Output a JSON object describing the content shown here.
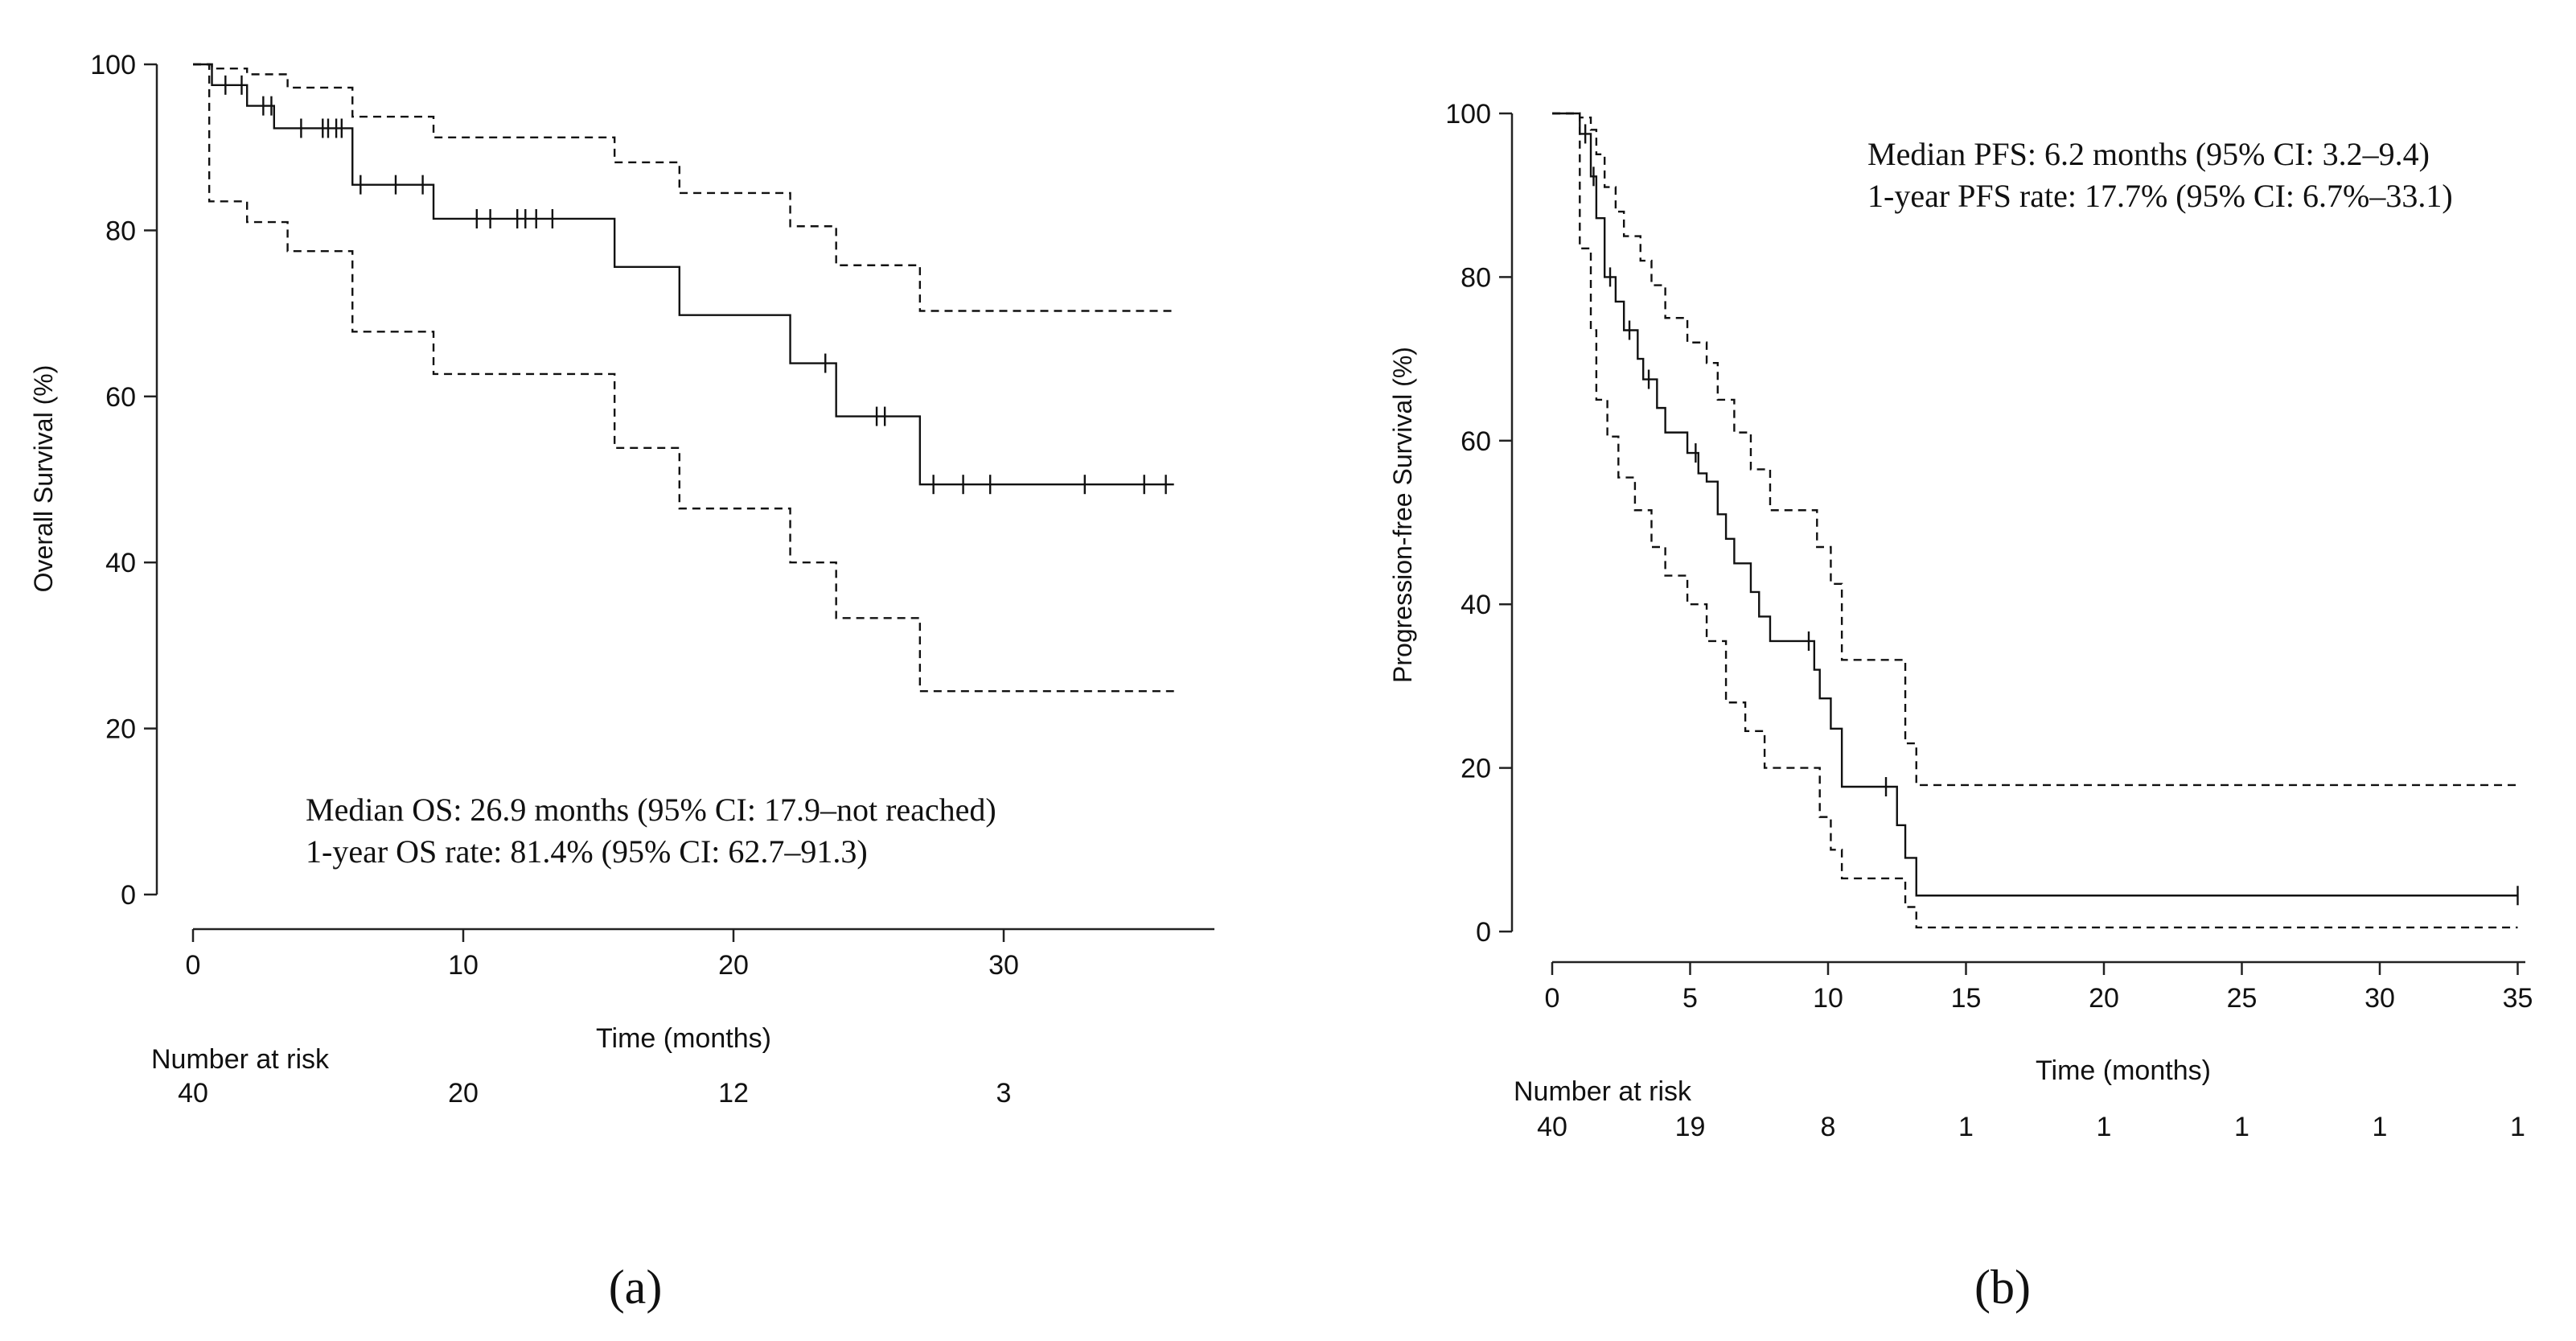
{
  "chart_data": [
    {
      "type": "line",
      "subtype": "kaplan-meier",
      "panel_label": "(a)",
      "xlabel": "Time (months)",
      "ylabel": "Overall Survival (%)",
      "xlim": [
        0,
        37
      ],
      "ylim": [
        0,
        100
      ],
      "xticks": [
        0,
        10,
        20,
        30
      ],
      "yticks": [
        0,
        20,
        40,
        60,
        80,
        100
      ],
      "annotations": [
        "Median OS: 26.9 months (95% CI: 17.9–not reached)",
        "1-year OS rate: 81.4% (95% CI: 62.7–91.3)"
      ],
      "risk_table": {
        "label": "Number at risk",
        "times": [
          0,
          10,
          20,
          30
        ],
        "counts": [
          "40",
          "20",
          "12",
          "3"
        ]
      },
      "series": [
        {
          "role": "estimate",
          "style": "solid",
          "steps": [
            [
              0,
              100
            ],
            [
              0.7,
              97.5
            ],
            [
              2,
              95
            ],
            [
              3,
              92.3
            ],
            [
              5.7,
              92.3
            ],
            [
              5.9,
              85.5
            ],
            [
              8.7,
              85.5
            ],
            [
              8.9,
              81.4
            ],
            [
              15.5,
              81.4
            ],
            [
              15.6,
              75.6
            ],
            [
              17.9,
              75.6
            ],
            [
              18,
              69.8
            ],
            [
              22,
              69.8
            ],
            [
              22.1,
              64
            ],
            [
              23.7,
              64
            ],
            [
              23.8,
              57.6
            ],
            [
              26.8,
              57.6
            ],
            [
              26.9,
              49.4
            ],
            [
              36.3,
              49.4
            ]
          ],
          "censored": [
            [
              1.2,
              97.5
            ],
            [
              1.8,
              97.5
            ],
            [
              2.6,
              95
            ],
            [
              2.9,
              95
            ],
            [
              4,
              92.3
            ],
            [
              4.8,
              92.3
            ],
            [
              5.0,
              92.3
            ],
            [
              5.3,
              92.3
            ],
            [
              5.5,
              92.3
            ],
            [
              6.2,
              85.5
            ],
            [
              7.5,
              85.5
            ],
            [
              8.5,
              85.5
            ],
            [
              10.5,
              81.4
            ],
            [
              11,
              81.4
            ],
            [
              12.0,
              81.4
            ],
            [
              12.3,
              81.4
            ],
            [
              12.7,
              81.4
            ],
            [
              13.3,
              81.4
            ],
            [
              23.4,
              64
            ],
            [
              25.3,
              57.6
            ],
            [
              25.6,
              57.6
            ],
            [
              27.4,
              49.4
            ],
            [
              28.5,
              49.4
            ],
            [
              29.5,
              49.4
            ],
            [
              33,
              49.4
            ],
            [
              35.2,
              49.4
            ],
            [
              36.0,
              49.4
            ]
          ]
        },
        {
          "role": "upper-ci",
          "style": "dashed",
          "steps": [
            [
              0,
              100
            ],
            [
              0.7,
              99.5
            ],
            [
              2,
              98.8
            ],
            [
              3.5,
              97.2
            ],
            [
              5.9,
              93.7
            ],
            [
              8.9,
              91.2
            ],
            [
              15.6,
              88.2
            ],
            [
              18,
              84.5
            ],
            [
              22.1,
              80.5
            ],
            [
              23.8,
              75.8
            ],
            [
              26.9,
              70.3
            ],
            [
              36.3,
              70.3
            ]
          ]
        },
        {
          "role": "lower-ci",
          "style": "dashed",
          "steps": [
            [
              0,
              100
            ],
            [
              0.6,
              83.5
            ],
            [
              2,
              81
            ],
            [
              3.5,
              77.5
            ],
            [
              5.9,
              67.8
            ],
            [
              8.9,
              62.7
            ],
            [
              15.6,
              53.8
            ],
            [
              18,
              46.5
            ],
            [
              22.1,
              40
            ],
            [
              23.8,
              33.3
            ],
            [
              26.9,
              24.5
            ],
            [
              36.3,
              24.5
            ]
          ]
        }
      ]
    },
    {
      "type": "line",
      "subtype": "kaplan-meier",
      "panel_label": "(b)",
      "xlabel": "Time (months)",
      "ylabel": "Progression-free Survival (%)",
      "xlim": [
        0,
        35.5
      ],
      "ylim": [
        0,
        100
      ],
      "xticks": [
        0,
        5,
        10,
        15,
        20,
        25,
        30,
        35
      ],
      "yticks": [
        0,
        20,
        40,
        60,
        80,
        100
      ],
      "annotations": [
        "Median PFS: 6.2 months (95% CI: 3.2–9.4)",
        "1-year PFS rate: 17.7% (95% CI: 6.7%–33.1)"
      ],
      "risk_table": {
        "label": "Number at risk",
        "times": [
          0,
          5,
          10,
          15,
          20,
          25,
          30,
          35
        ],
        "counts": [
          "40",
          "19",
          "8",
          "1",
          "1",
          "1",
          "1",
          "1"
        ]
      },
      "series": [
        {
          "role": "estimate",
          "style": "solid",
          "steps": [
            [
              0,
              100
            ],
            [
              1.0,
              97.5
            ],
            [
              1.4,
              92.3
            ],
            [
              1.6,
              87.2
            ],
            [
              1.9,
              80
            ],
            [
              2.3,
              77
            ],
            [
              2.6,
              73.5
            ],
            [
              3.1,
              70
            ],
            [
              3.3,
              67.5
            ],
            [
              3.8,
              64
            ],
            [
              4.1,
              61
            ],
            [
              4.9,
              58.5
            ],
            [
              5.3,
              56
            ],
            [
              5.6,
              55
            ],
            [
              6.0,
              51
            ],
            [
              6.3,
              48
            ],
            [
              6.6,
              45
            ],
            [
              7.2,
              41.5
            ],
            [
              7.5,
              38.5
            ],
            [
              7.9,
              35.5
            ],
            [
              9.3,
              35.5
            ],
            [
              9.5,
              32
            ],
            [
              9.7,
              28.5
            ],
            [
              10.1,
              24.8
            ],
            [
              10.5,
              17.7
            ],
            [
              12.2,
              17.7
            ],
            [
              12.5,
              13
            ],
            [
              12.8,
              9
            ],
            [
              13.2,
              4.4
            ],
            [
              35,
              4.4
            ]
          ],
          "censored": [
            [
              1.2,
              97.5
            ],
            [
              1.5,
              92.3
            ],
            [
              2.1,
              80
            ],
            [
              2.8,
              73.5
            ],
            [
              3.5,
              67.5
            ],
            [
              5.2,
              58.5
            ],
            [
              9.3,
              35.5
            ],
            [
              12.1,
              17.7
            ],
            [
              35,
              4.4
            ]
          ]
        },
        {
          "role": "upper-ci",
          "style": "dashed",
          "steps": [
            [
              0,
              100
            ],
            [
              1.0,
              99.5
            ],
            [
              1.4,
              98
            ],
            [
              1.6,
              95
            ],
            [
              1.9,
              91
            ],
            [
              2.3,
              88
            ],
            [
              2.6,
              85
            ],
            [
              3.2,
              82
            ],
            [
              3.6,
              79
            ],
            [
              4.1,
              75
            ],
            [
              4.9,
              72
            ],
            [
              5.6,
              69.5
            ],
            [
              6.0,
              65
            ],
            [
              6.6,
              61
            ],
            [
              7.2,
              56.5
            ],
            [
              7.9,
              51.5
            ],
            [
              9.4,
              51.5
            ],
            [
              9.6,
              47
            ],
            [
              10.1,
              42.5
            ],
            [
              10.5,
              33.2
            ],
            [
              12.5,
              33.2
            ],
            [
              12.8,
              23
            ],
            [
              13.2,
              17.9
            ],
            [
              35,
              17.9
            ]
          ]
        },
        {
          "role": "lower-ci",
          "style": "dashed",
          "steps": [
            [
              0,
              100
            ],
            [
              1.0,
              83.5
            ],
            [
              1.4,
              73.5
            ],
            [
              1.6,
              65
            ],
            [
              2.0,
              60.5
            ],
            [
              2.4,
              55.5
            ],
            [
              3.0,
              51.5
            ],
            [
              3.6,
              47
            ],
            [
              4.1,
              43.5
            ],
            [
              4.9,
              40
            ],
            [
              5.6,
              35.5
            ],
            [
              6.3,
              28
            ],
            [
              7.0,
              24.5
            ],
            [
              7.7,
              20
            ],
            [
              9.3,
              20
            ],
            [
              9.7,
              14
            ],
            [
              10.1,
              10
            ],
            [
              10.5,
              6.5
            ],
            [
              12.5,
              6.5
            ],
            [
              12.8,
              3
            ],
            [
              13.2,
              0.5
            ],
            [
              35,
              0.5
            ]
          ]
        }
      ]
    }
  ]
}
